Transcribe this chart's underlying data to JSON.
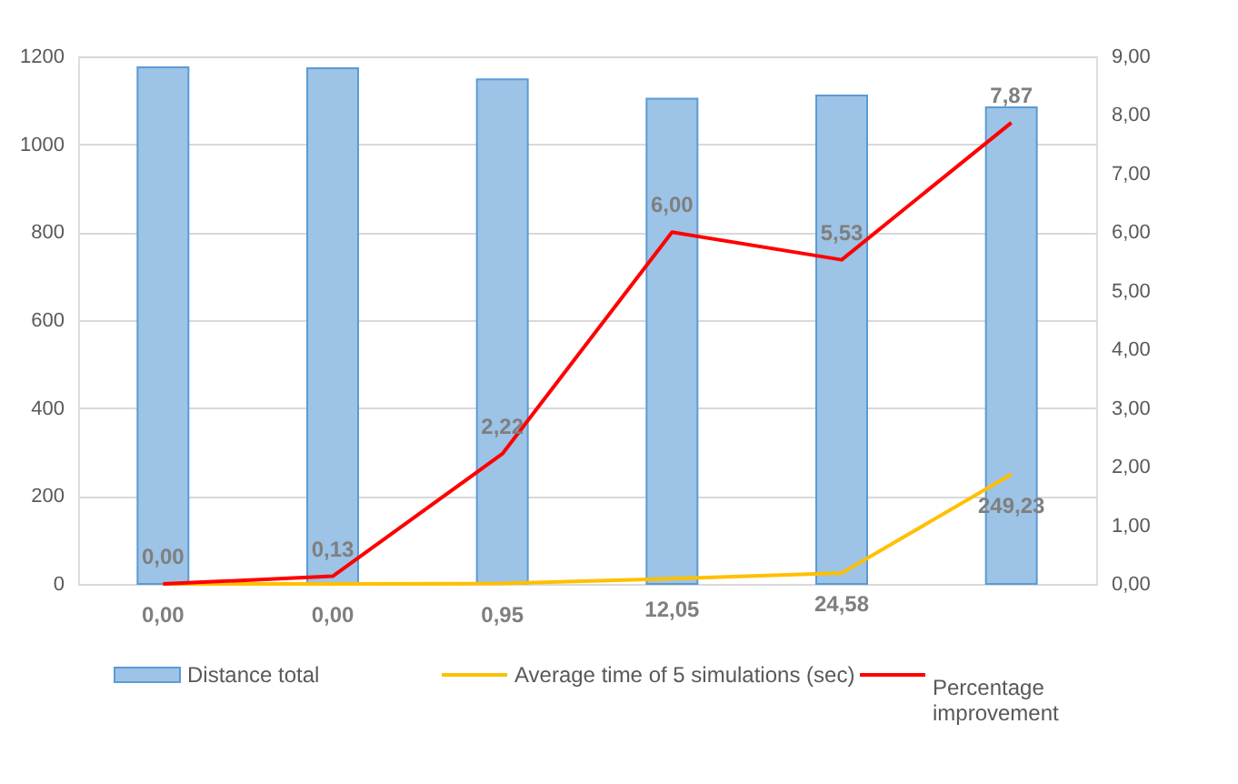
{
  "chart_data": {
    "type": "bar",
    "categories": [
      null,
      null,
      null,
      null,
      null,
      null
    ],
    "series": [
      {
        "name": "Distance total",
        "color": "#9dc3e6",
        "values": [
          1175,
          1173,
          1148,
          1104,
          1111,
          1084
        ]
      },
      {
        "name": "Average time of 5 simulations (sec)",
        "type": "line",
        "color": "#ffc000",
        "values": [
          0,
          0,
          0.95,
          12.05,
          24.58,
          249.23
        ],
        "value_labels": [
          "0,00",
          "0,00",
          "0,95",
          "12,05",
          "24,58",
          "249,23"
        ]
      },
      {
        "name": "Percentage improvement",
        "type": "line",
        "axis": "y2",
        "color": "#ff0000",
        "values": [
          0,
          0.13,
          2.22,
          6.0,
          5.53,
          7.87
        ],
        "value_labels": [
          "0,00",
          "0,13",
          "2,22",
          "6,00",
          "5,53",
          "7,87"
        ]
      }
    ],
    "ylim": [
      0,
      1200
    ],
    "yticks": [
      0,
      200,
      400,
      600,
      800,
      1000,
      1200
    ],
    "y2lim": [
      0,
      9
    ],
    "y2ticks": [
      {
        "value": 0,
        "label": "0,00"
      },
      {
        "value": 1,
        "label": "1,00"
      },
      {
        "value": 2,
        "label": "2,00"
      },
      {
        "value": 3,
        "label": "3,00"
      },
      {
        "value": 4,
        "label": "4,00"
      },
      {
        "value": 5,
        "label": "5,00"
      },
      {
        "value": 6,
        "label": "6,00"
      },
      {
        "value": 7,
        "label": "7,00"
      },
      {
        "value": 8,
        "label": "8,00"
      },
      {
        "value": 9,
        "label": "9,00"
      }
    ],
    "grid": "y",
    "legend": "bottom"
  }
}
